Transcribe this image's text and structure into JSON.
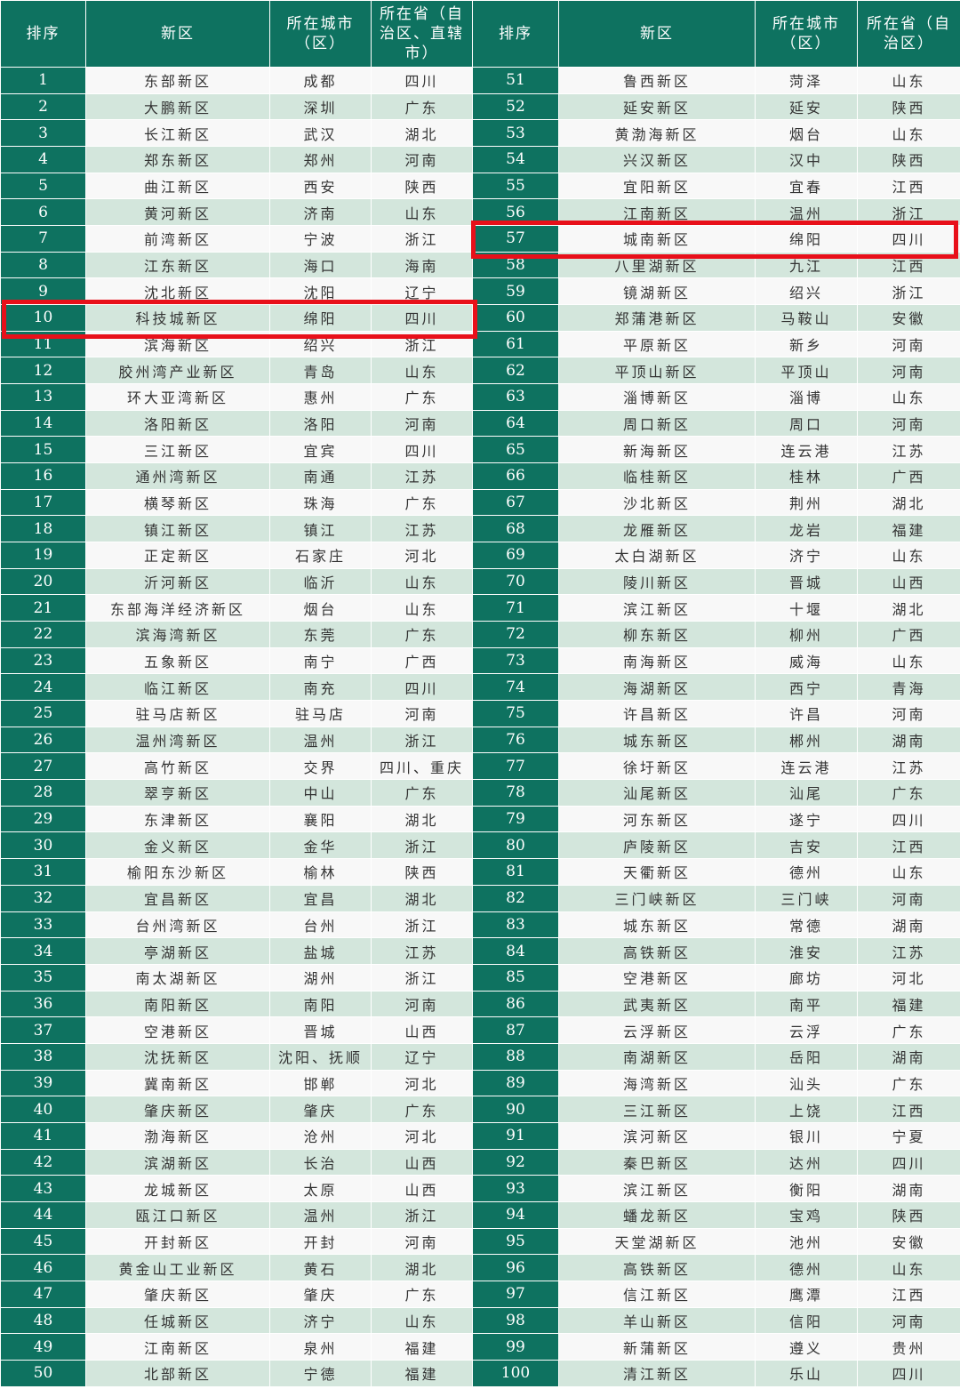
{
  "header": [
    "排序",
    "新区",
    "所在城市（区）",
    "所在省（自治区、直辖市）",
    "排序",
    "新区",
    "所在城市（区）",
    "所在省（自治区）"
  ],
  "highlight_color": "#e8101a",
  "accent_color": "#0e7260",
  "highlighted_ranks": [
    "10",
    "57"
  ],
  "left": [
    [
      "1",
      "东部新区",
      "成都",
      "四川"
    ],
    [
      "2",
      "大鹏新区",
      "深圳",
      "广东"
    ],
    [
      "3",
      "长江新区",
      "武汉",
      "湖北"
    ],
    [
      "4",
      "郑东新区",
      "郑州",
      "河南"
    ],
    [
      "5",
      "曲江新区",
      "西安",
      "陕西"
    ],
    [
      "6",
      "黄河新区",
      "济南",
      "山东"
    ],
    [
      "7",
      "前湾新区",
      "宁波",
      "浙江"
    ],
    [
      "8",
      "江东新区",
      "海口",
      "海南"
    ],
    [
      "9",
      "沈北新区",
      "沈阳",
      "辽宁"
    ],
    [
      "10",
      "科技城新区",
      "绵阳",
      "四川"
    ],
    [
      "11",
      "滨海新区",
      "绍兴",
      "浙江"
    ],
    [
      "12",
      "胶州湾产业新区",
      "青岛",
      "山东"
    ],
    [
      "13",
      "环大亚湾新区",
      "惠州",
      "广东"
    ],
    [
      "14",
      "洛阳新区",
      "洛阳",
      "河南"
    ],
    [
      "15",
      "三江新区",
      "宜宾",
      "四川"
    ],
    [
      "16",
      "通州湾新区",
      "南通",
      "江苏"
    ],
    [
      "17",
      "横琴新区",
      "珠海",
      "广东"
    ],
    [
      "18",
      "镇江新区",
      "镇江",
      "江苏"
    ],
    [
      "19",
      "正定新区",
      "石家庄",
      "河北"
    ],
    [
      "20",
      "沂河新区",
      "临沂",
      "山东"
    ],
    [
      "21",
      "东部海洋经济新区",
      "烟台",
      "山东"
    ],
    [
      "22",
      "滨海湾新区",
      "东莞",
      "广东"
    ],
    [
      "23",
      "五象新区",
      "南宁",
      "广西"
    ],
    [
      "24",
      "临江新区",
      "南充",
      "四川"
    ],
    [
      "25",
      "驻马店新区",
      "驻马店",
      "河南"
    ],
    [
      "26",
      "温州湾新区",
      "温州",
      "浙江"
    ],
    [
      "27",
      "高竹新区",
      "交界",
      "四川、重庆"
    ],
    [
      "28",
      "翠亨新区",
      "中山",
      "广东"
    ],
    [
      "29",
      "东津新区",
      "襄阳",
      "湖北"
    ],
    [
      "30",
      "金义新区",
      "金华",
      "浙江"
    ],
    [
      "31",
      "榆阳东沙新区",
      "榆林",
      "陕西"
    ],
    [
      "32",
      "宜昌新区",
      "宜昌",
      "湖北"
    ],
    [
      "33",
      "台州湾新区",
      "台州",
      "浙江"
    ],
    [
      "34",
      "亭湖新区",
      "盐城",
      "江苏"
    ],
    [
      "35",
      "南太湖新区",
      "湖州",
      "浙江"
    ],
    [
      "36",
      "南阳新区",
      "南阳",
      "河南"
    ],
    [
      "37",
      "空港新区",
      "晋城",
      "山西"
    ],
    [
      "38",
      "沈抚新区",
      "沈阳、抚顺",
      "辽宁"
    ],
    [
      "39",
      "冀南新区",
      "邯郸",
      "河北"
    ],
    [
      "40",
      "肇庆新区",
      "肇庆",
      "广东"
    ],
    [
      "41",
      "渤海新区",
      "沧州",
      "河北"
    ],
    [
      "42",
      "滨湖新区",
      "长治",
      "山西"
    ],
    [
      "43",
      "龙城新区",
      "太原",
      "山西"
    ],
    [
      "44",
      "瓯江口新区",
      "温州",
      "浙江"
    ],
    [
      "45",
      "开封新区",
      "开封",
      "河南"
    ],
    [
      "46",
      "黄金山工业新区",
      "黄石",
      "湖北"
    ],
    [
      "47",
      "肇庆新区",
      "肇庆",
      "广东"
    ],
    [
      "48",
      "任城新区",
      "济宁",
      "山东"
    ],
    [
      "49",
      "江南新区",
      "泉州",
      "福建"
    ],
    [
      "50",
      "北部新区",
      "宁德",
      "福建"
    ]
  ],
  "right": [
    [
      "51",
      "鲁西新区",
      "菏泽",
      "山东"
    ],
    [
      "52",
      "延安新区",
      "延安",
      "陕西"
    ],
    [
      "53",
      "黄渤海新区",
      "烟台",
      "山东"
    ],
    [
      "54",
      "兴汉新区",
      "汉中",
      "陕西"
    ],
    [
      "55",
      "宜阳新区",
      "宜春",
      "江西"
    ],
    [
      "56",
      "江南新区",
      "温州",
      "浙江"
    ],
    [
      "57",
      "城南新区",
      "绵阳",
      "四川"
    ],
    [
      "58",
      "八里湖新区",
      "九江",
      "江西"
    ],
    [
      "59",
      "镜湖新区",
      "绍兴",
      "浙江"
    ],
    [
      "60",
      "郑蒲港新区",
      "马鞍山",
      "安徽"
    ],
    [
      "61",
      "平原新区",
      "新乡",
      "河南"
    ],
    [
      "62",
      "平顶山新区",
      "平顶山",
      "河南"
    ],
    [
      "63",
      "淄博新区",
      "淄博",
      "山东"
    ],
    [
      "64",
      "周口新区",
      "周口",
      "河南"
    ],
    [
      "65",
      "新海新区",
      "连云港",
      "江苏"
    ],
    [
      "66",
      "临桂新区",
      "桂林",
      "广西"
    ],
    [
      "67",
      "沙北新区",
      "荆州",
      "湖北"
    ],
    [
      "68",
      "龙雁新区",
      "龙岩",
      "福建"
    ],
    [
      "69",
      "太白湖新区",
      "济宁",
      "山东"
    ],
    [
      "70",
      "陵川新区",
      "晋城",
      "山西"
    ],
    [
      "71",
      "滨江新区",
      "十堰",
      "湖北"
    ],
    [
      "72",
      "柳东新区",
      "柳州",
      "广西"
    ],
    [
      "73",
      "南海新区",
      "威海",
      "山东"
    ],
    [
      "74",
      "海湖新区",
      "西宁",
      "青海"
    ],
    [
      "75",
      "许昌新区",
      "许昌",
      "河南"
    ],
    [
      "76",
      "城东新区",
      "郴州",
      "湖南"
    ],
    [
      "77",
      "徐圩新区",
      "连云港",
      "江苏"
    ],
    [
      "78",
      "汕尾新区",
      "汕尾",
      "广东"
    ],
    [
      "79",
      "河东新区",
      "遂宁",
      "四川"
    ],
    [
      "80",
      "庐陵新区",
      "吉安",
      "江西"
    ],
    [
      "81",
      "天衢新区",
      "德州",
      "山东"
    ],
    [
      "82",
      "三门峡新区",
      "三门峡",
      "河南"
    ],
    [
      "83",
      "城东新区",
      "常德",
      "湖南"
    ],
    [
      "84",
      "高铁新区",
      "淮安",
      "江苏"
    ],
    [
      "85",
      "空港新区",
      "廊坊",
      "河北"
    ],
    [
      "86",
      "武夷新区",
      "南平",
      "福建"
    ],
    [
      "87",
      "云浮新区",
      "云浮",
      "广东"
    ],
    [
      "88",
      "南湖新区",
      "岳阳",
      "湖南"
    ],
    [
      "89",
      "海湾新区",
      "汕头",
      "广东"
    ],
    [
      "90",
      "三江新区",
      "上饶",
      "江西"
    ],
    [
      "91",
      "滨河新区",
      "银川",
      "宁夏"
    ],
    [
      "92",
      "秦巴新区",
      "达州",
      "四川"
    ],
    [
      "93",
      "滨江新区",
      "衡阳",
      "湖南"
    ],
    [
      "94",
      "蟠龙新区",
      "宝鸡",
      "陕西"
    ],
    [
      "95",
      "天堂湖新区",
      "池州",
      "安徽"
    ],
    [
      "96",
      "高铁新区",
      "德州",
      "山东"
    ],
    [
      "97",
      "信江新区",
      "鹰潭",
      "江西"
    ],
    [
      "98",
      "羊山新区",
      "信阳",
      "河南"
    ],
    [
      "99",
      "新蒲新区",
      "遵义",
      "贵州"
    ],
    [
      "100",
      "清江新区",
      "乐山",
      "四川"
    ]
  ]
}
